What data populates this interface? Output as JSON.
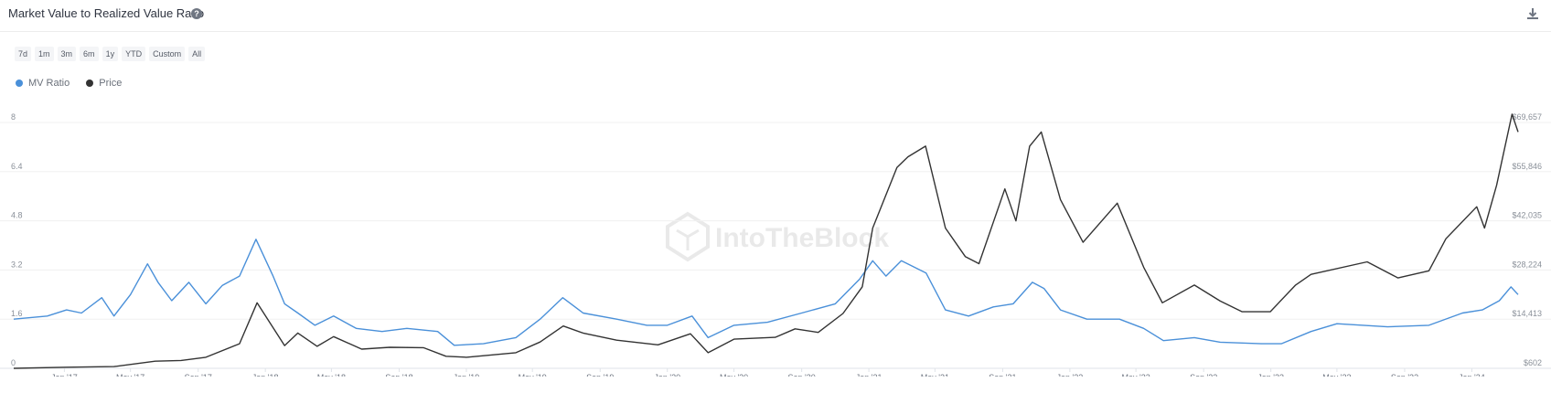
{
  "header": {
    "title": "Market Value to Realized Value Ratio",
    "help_icon": "question-circle-icon",
    "download_icon": "download-icon"
  },
  "range_buttons": [
    "7d",
    "1m",
    "3m",
    "6m",
    "1y",
    "YTD",
    "Custom",
    "All"
  ],
  "legend": [
    {
      "name": "MV Ratio",
      "color": "#4a90d9"
    },
    {
      "name": "Price",
      "color": "#333333"
    }
  ],
  "watermark": "IntoTheBlock",
  "chart_data": {
    "type": "line",
    "x_ticks": [
      "Jan '17",
      "May '17",
      "Sep '17",
      "Jan '18",
      "May '18",
      "Sep '18",
      "Jan '19",
      "May '19",
      "Sep '19",
      "Jan '20",
      "May '20",
      "Sep '20",
      "Jan '21",
      "May '21",
      "Sep '21",
      "Jan '22",
      "May '22",
      "Sep '22",
      "Jan '23",
      "May '23",
      "Sep '23",
      "Jan '24"
    ],
    "x_range": [
      "2016-10-01",
      "2024-03-25"
    ],
    "left_axis": {
      "ticks": [
        "0",
        "1.6",
        "3.2",
        "4.8",
        "6.4",
        "8"
      ],
      "range": [
        0,
        8
      ]
    },
    "right_axis": {
      "ticks": [
        "$602",
        "$14,413",
        "$28,224",
        "$42,035",
        "$55,846",
        "$69,657"
      ],
      "range": [
        602,
        69657
      ]
    },
    "grid": true,
    "legend_position": "top-left",
    "series": [
      {
        "name": "MV Ratio",
        "color": "#4a90d9",
        "axis": "left",
        "points": [
          [
            "2016-10-01",
            1.6
          ],
          [
            "2016-12-01",
            1.7
          ],
          [
            "2017-01-05",
            1.9
          ],
          [
            "2017-02-01",
            1.8
          ],
          [
            "2017-03-10",
            2.3
          ],
          [
            "2017-04-01",
            1.7
          ],
          [
            "2017-05-01",
            2.4
          ],
          [
            "2017-06-01",
            3.4
          ],
          [
            "2017-06-20",
            2.8
          ],
          [
            "2017-07-15",
            2.2
          ],
          [
            "2017-08-15",
            2.8
          ],
          [
            "2017-09-15",
            2.1
          ],
          [
            "2017-10-15",
            2.7
          ],
          [
            "2017-11-15",
            3.0
          ],
          [
            "2017-12-15",
            4.2
          ],
          [
            "2018-01-15",
            3.0
          ],
          [
            "2018-02-05",
            2.1
          ],
          [
            "2018-03-01",
            1.8
          ],
          [
            "2018-04-01",
            1.4
          ],
          [
            "2018-05-05",
            1.7
          ],
          [
            "2018-06-15",
            1.3
          ],
          [
            "2018-08-01",
            1.2
          ],
          [
            "2018-09-15",
            1.3
          ],
          [
            "2018-11-10",
            1.2
          ],
          [
            "2018-12-10",
            0.75
          ],
          [
            "2019-02-01",
            0.8
          ],
          [
            "2019-04-01",
            1.0
          ],
          [
            "2019-05-15",
            1.6
          ],
          [
            "2019-06-25",
            2.3
          ],
          [
            "2019-08-01",
            1.8
          ],
          [
            "2019-10-01",
            1.6
          ],
          [
            "2019-11-25",
            1.4
          ],
          [
            "2020-01-01",
            1.4
          ],
          [
            "2020-02-15",
            1.7
          ],
          [
            "2020-03-15",
            1.0
          ],
          [
            "2020-05-01",
            1.4
          ],
          [
            "2020-07-01",
            1.5
          ],
          [
            "2020-09-01",
            1.8
          ],
          [
            "2020-11-01",
            2.1
          ],
          [
            "2020-12-15",
            2.9
          ],
          [
            "2021-01-08",
            3.5
          ],
          [
            "2021-02-01",
            3.0
          ],
          [
            "2021-03-01",
            3.5
          ],
          [
            "2021-04-15",
            3.1
          ],
          [
            "2021-05-20",
            1.9
          ],
          [
            "2021-07-01",
            1.7
          ],
          [
            "2021-08-15",
            2.0
          ],
          [
            "2021-09-20",
            2.1
          ],
          [
            "2021-10-25",
            2.8
          ],
          [
            "2021-11-15",
            2.6
          ],
          [
            "2021-12-15",
            1.9
          ],
          [
            "2022-02-01",
            1.6
          ],
          [
            "2022-04-01",
            1.6
          ],
          [
            "2022-05-15",
            1.3
          ],
          [
            "2022-06-20",
            0.9
          ],
          [
            "2022-08-15",
            1.0
          ],
          [
            "2022-10-01",
            0.85
          ],
          [
            "2022-12-15",
            0.8
          ],
          [
            "2023-01-20",
            0.8
          ],
          [
            "2023-03-15",
            1.2
          ],
          [
            "2023-05-01",
            1.45
          ],
          [
            "2023-08-01",
            1.35
          ],
          [
            "2023-10-15",
            1.4
          ],
          [
            "2023-12-15",
            1.8
          ],
          [
            "2024-01-20",
            1.9
          ],
          [
            "2024-02-20",
            2.2
          ],
          [
            "2024-03-12",
            2.65
          ],
          [
            "2024-03-25",
            2.4
          ]
        ]
      },
      {
        "name": "Price",
        "color": "#333333",
        "axis": "right",
        "points": [
          [
            "2016-10-01",
            610
          ],
          [
            "2017-01-05",
            900
          ],
          [
            "2017-04-01",
            1100
          ],
          [
            "2017-06-15",
            2600
          ],
          [
            "2017-08-01",
            2800
          ],
          [
            "2017-09-15",
            3700
          ],
          [
            "2017-11-15",
            7500
          ],
          [
            "2017-12-17",
            19000
          ],
          [
            "2018-02-05",
            7000
          ],
          [
            "2018-03-01",
            10500
          ],
          [
            "2018-04-05",
            6800
          ],
          [
            "2018-05-05",
            9500
          ],
          [
            "2018-06-25",
            6000
          ],
          [
            "2018-08-15",
            6500
          ],
          [
            "2018-10-15",
            6400
          ],
          [
            "2018-11-25",
            4000
          ],
          [
            "2019-01-01",
            3700
          ],
          [
            "2019-04-01",
            5000
          ],
          [
            "2019-05-15",
            8000
          ],
          [
            "2019-06-26",
            12500
          ],
          [
            "2019-08-01",
            10500
          ],
          [
            "2019-10-01",
            8500
          ],
          [
            "2019-12-15",
            7200
          ],
          [
            "2020-02-12",
            10300
          ],
          [
            "2020-03-15",
            5000
          ],
          [
            "2020-05-01",
            8800
          ],
          [
            "2020-07-15",
            9300
          ],
          [
            "2020-08-20",
            11700
          ],
          [
            "2020-10-01",
            10700
          ],
          [
            "2020-11-15",
            16000
          ],
          [
            "2020-12-20",
            23500
          ],
          [
            "2021-01-08",
            40000
          ],
          [
            "2021-02-21",
            57000
          ],
          [
            "2021-03-13",
            60000
          ],
          [
            "2021-04-14",
            63000
          ],
          [
            "2021-05-20",
            40000
          ],
          [
            "2021-06-25",
            32000
          ],
          [
            "2021-07-20",
            30000
          ],
          [
            "2021-09-05",
            51000
          ],
          [
            "2021-09-25",
            42000
          ],
          [
            "2021-10-20",
            63000
          ],
          [
            "2021-11-10",
            67000
          ],
          [
            "2021-12-15",
            48000
          ],
          [
            "2022-01-25",
            36000
          ],
          [
            "2022-03-28",
            47000
          ],
          [
            "2022-05-15",
            29000
          ],
          [
            "2022-06-18",
            19000
          ],
          [
            "2022-08-15",
            24000
          ],
          [
            "2022-10-01",
            19500
          ],
          [
            "2022-11-10",
            16500
          ],
          [
            "2022-12-31",
            16500
          ],
          [
            "2023-02-15",
            24000
          ],
          [
            "2023-03-15",
            27000
          ],
          [
            "2023-06-25",
            30500
          ],
          [
            "2023-08-20",
            26000
          ],
          [
            "2023-10-15",
            28000
          ],
          [
            "2023-11-15",
            37000
          ],
          [
            "2024-01-10",
            46000
          ],
          [
            "2024-01-24",
            40000
          ],
          [
            "2024-02-15",
            52000
          ],
          [
            "2024-03-14",
            72000
          ],
          [
            "2024-03-25",
            67000
          ]
        ]
      }
    ]
  }
}
